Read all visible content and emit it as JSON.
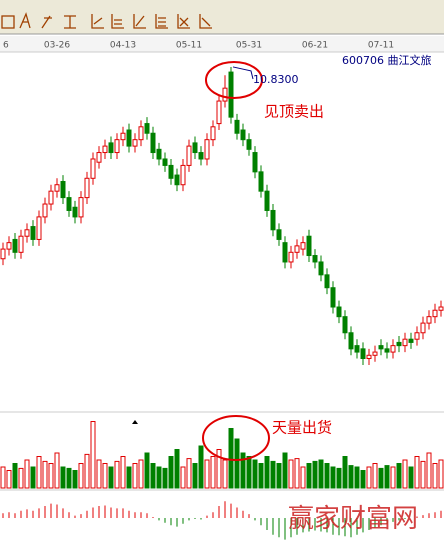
{
  "chart_data": {
    "type": "candlestick",
    "stock": "600706 曲江文旅",
    "peak_label": "10.8300",
    "annotations": [
      "见顶卖出",
      "天量出货"
    ],
    "watermark": "赢家财富网",
    "categories": [
      "6",
      null,
      null,
      null,
      null,
      null,
      null,
      null,
      null,
      "03-26",
      null,
      null,
      null,
      null,
      null,
      null,
      null,
      null,
      null,
      null,
      "04-13",
      null,
      null,
      null,
      null,
      null,
      null,
      null,
      null,
      null,
      null,
      "05-11",
      null,
      null,
      null,
      null,
      null,
      null,
      null,
      null,
      null,
      "05-31",
      null,
      null,
      null,
      null,
      null,
      null,
      null,
      null,
      null,
      null,
      "06-21",
      null,
      null,
      null,
      null,
      null,
      null,
      null,
      null,
      null,
      null,
      "07-11",
      null,
      null,
      null,
      null,
      null,
      null,
      null,
      null,
      null,
      null
    ],
    "open": [
      7.85,
      8.0,
      8.15,
      7.95,
      8.2,
      8.35,
      8.15,
      8.5,
      8.7,
      8.9,
      9.05,
      8.8,
      8.65,
      8.5,
      8.8,
      9.1,
      9.35,
      9.5,
      9.65,
      9.5,
      9.7,
      9.85,
      9.6,
      9.7,
      9.95,
      9.8,
      9.55,
      9.4,
      9.3,
      9.15,
      9.0,
      9.3,
      9.65,
      9.5,
      9.4,
      9.7,
      9.95,
      10.3,
      10.75,
      10.0,
      9.85,
      9.7,
      9.5,
      9.2,
      8.9,
      8.6,
      8.3,
      8.1,
      7.8,
      7.95,
      8.0,
      8.2,
      7.9,
      7.8,
      7.6,
      7.4,
      7.1,
      6.95,
      6.7,
      6.5,
      6.45,
      6.3,
      6.35,
      6.5,
      6.45,
      6.4,
      6.55,
      6.5,
      6.6,
      6.6,
      6.7,
      6.85,
      6.95,
      7.05
    ],
    "high": [
      8.1,
      8.2,
      8.25,
      8.3,
      8.4,
      8.45,
      8.6,
      8.8,
      9.0,
      9.1,
      9.15,
      8.9,
      8.75,
      8.9,
      9.2,
      9.5,
      9.6,
      9.7,
      9.75,
      9.8,
      9.9,
      9.95,
      9.8,
      10.0,
      10.05,
      9.9,
      9.65,
      9.5,
      9.4,
      9.25,
      9.4,
      9.7,
      9.75,
      9.6,
      9.8,
      10.0,
      10.4,
      10.7,
      10.83,
      10.1,
      9.95,
      9.8,
      9.6,
      9.3,
      9.0,
      8.7,
      8.4,
      8.2,
      8.05,
      8.15,
      8.2,
      8.3,
      8.0,
      7.9,
      7.7,
      7.5,
      7.2,
      7.05,
      6.8,
      6.6,
      6.55,
      6.45,
      6.5,
      6.6,
      6.55,
      6.6,
      6.65,
      6.7,
      6.7,
      6.8,
      6.95,
      7.05,
      7.15,
      7.2
    ],
    "low": [
      7.75,
      7.9,
      7.85,
      7.85,
      8.1,
      8.05,
      8.05,
      8.4,
      8.6,
      8.8,
      8.7,
      8.5,
      8.4,
      8.4,
      8.7,
      9.0,
      9.25,
      9.4,
      9.4,
      9.4,
      9.6,
      9.5,
      9.5,
      9.6,
      9.7,
      9.4,
      9.3,
      9.2,
      9.0,
      8.9,
      8.9,
      9.2,
      9.4,
      9.3,
      9.3,
      9.6,
      9.85,
      10.2,
      9.95,
      9.7,
      9.6,
      9.45,
      9.1,
      8.8,
      8.5,
      8.2,
      8.05,
      7.7,
      7.7,
      7.85,
      7.9,
      7.8,
      7.7,
      7.5,
      7.3,
      7.0,
      6.85,
      6.6,
      6.35,
      6.3,
      6.2,
      6.2,
      6.25,
      6.35,
      6.3,
      6.3,
      6.4,
      6.4,
      6.45,
      6.5,
      6.6,
      6.75,
      6.85,
      6.95
    ],
    "close": [
      8.0,
      8.1,
      7.95,
      8.2,
      8.3,
      8.15,
      8.5,
      8.7,
      8.9,
      9.0,
      8.8,
      8.6,
      8.5,
      8.8,
      9.1,
      9.4,
      9.5,
      9.6,
      9.5,
      9.7,
      9.8,
      9.6,
      9.7,
      9.9,
      9.8,
      9.5,
      9.4,
      9.3,
      9.1,
      9.0,
      9.3,
      9.6,
      9.5,
      9.4,
      9.7,
      9.9,
      10.3,
      10.5,
      10.05,
      9.8,
      9.7,
      9.55,
      9.2,
      8.9,
      8.6,
      8.3,
      8.15,
      7.8,
      7.95,
      8.05,
      8.1,
      7.9,
      7.8,
      7.6,
      7.4,
      7.1,
      6.95,
      6.7,
      6.45,
      6.4,
      6.3,
      6.35,
      6.4,
      6.45,
      6.4,
      6.5,
      6.5,
      6.6,
      6.55,
      6.7,
      6.85,
      6.95,
      7.05,
      7.1
    ],
    "volume": [
      30,
      25,
      35,
      28,
      40,
      30,
      45,
      38,
      35,
      50,
      30,
      28,
      25,
      35,
      48,
      95,
      40,
      35,
      30,
      38,
      45,
      30,
      35,
      40,
      50,
      35,
      30,
      28,
      45,
      55,
      30,
      42,
      35,
      60,
      40,
      45,
      55,
      40,
      85,
      70,
      50,
      45,
      40,
      35,
      45,
      38,
      35,
      50,
      40,
      42,
      30,
      35,
      38,
      40,
      35,
      30,
      28,
      45,
      32,
      30,
      25,
      30,
      35,
      28,
      32,
      30,
      35,
      40,
      30,
      45,
      38,
      50,
      35,
      40
    ],
    "macd": [
      0.1,
      0.12,
      0.1,
      0.15,
      0.18,
      0.15,
      0.2,
      0.25,
      0.3,
      0.28,
      0.2,
      0.12,
      0.05,
      0.08,
      0.15,
      0.22,
      0.25,
      0.26,
      0.22,
      0.2,
      0.2,
      0.15,
      0.12,
      0.12,
      0.1,
      0.02,
      -0.05,
      -0.1,
      -0.15,
      -0.18,
      -0.12,
      -0.05,
      -0.02,
      -0.03,
      0.05,
      0.12,
      0.25,
      0.35,
      0.3,
      0.22,
      0.15,
      0.08,
      -0.05,
      -0.15,
      -0.25,
      -0.35,
      -0.4,
      -0.45,
      -0.4,
      -0.35,
      -0.3,
      -0.28,
      -0.26,
      -0.28,
      -0.3,
      -0.35,
      -0.36,
      -0.38,
      -0.4,
      -0.35,
      -0.3,
      -0.25,
      -0.2,
      -0.15,
      -0.12,
      -0.08,
      -0.05,
      -0.02,
      0.0,
      0.03,
      0.06,
      0.1,
      0.12,
      0.15
    ],
    "ylim": [
      5.5,
      11.0
    ],
    "vlim": [
      0,
      100
    ],
    "macdlim": [
      -0.5,
      0.5
    ],
    "up_color": "#e00000",
    "down_color": "#008000"
  }
}
